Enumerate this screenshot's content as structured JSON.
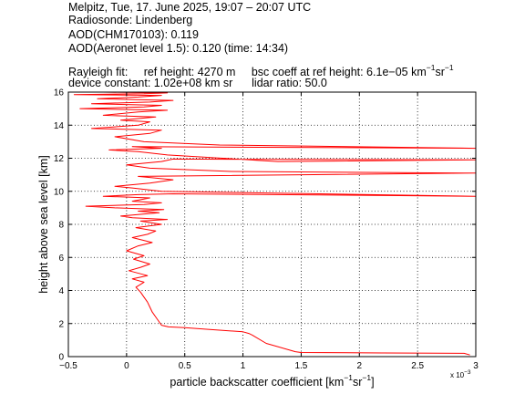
{
  "header": {
    "line1": "Melpitz, Tue, 17. June 2025, 19:07 – 20:07 UTC",
    "line2": "Radiosonde: Lindenberg",
    "line3": "AOD(CHM170103): 0.119",
    "line4": "AOD(Aeronet level 1.5): 0.120   (time: 14:34)",
    "rayleigh_label": "Rayleigh fit:",
    "ref_height": "ref height: 4270 m",
    "bsc_coeff_pre": "bsc coeff at ref height: 6.1e−05 km",
    "bsc_coeff_exp1": "−1",
    "bsc_coeff_mid": "sr",
    "bsc_coeff_exp2": "−1",
    "device_constant": "device constant: 1.02e+08 km sr",
    "lidar_ratio": "lidar ratio: 50.0"
  },
  "chart_data": {
    "type": "line",
    "xlabel_pre": "particle backscatter coefficient [km",
    "xlabel_exp1": "−1",
    "xlabel_mid": "sr",
    "xlabel_exp2": "−1",
    "xlabel_post": "]",
    "x_multiplier": "x 10",
    "x_multiplier_exp": "−3",
    "ylabel": "height above sea level [km]",
    "xlim": [
      -0.5,
      3
    ],
    "ylim": [
      0,
      16
    ],
    "xticks": [
      -0.5,
      0,
      0.5,
      1,
      1.5,
      2,
      2.5,
      3
    ],
    "xtick_labels": [
      "−0.5",
      "0",
      "0.5",
      "1",
      "1.5",
      "2",
      "2.5",
      "3"
    ],
    "yticks": [
      0,
      2,
      4,
      6,
      8,
      10,
      12,
      14,
      16
    ],
    "ytick_labels": [
      "0",
      "2",
      "4",
      "6",
      "8",
      "10",
      "12",
      "14",
      "16"
    ],
    "grid": true,
    "line_color": "#ff0000",
    "series": [
      {
        "x": [
          2.95,
          2.9,
          2.2,
          1.5,
          1.45,
          1.2,
          1.08,
          1.05,
          1.0,
          0.7,
          0.5,
          0.36,
          0.3,
          0.28,
          0.25,
          0.22,
          0.2,
          0.18,
          0.15,
          0.12,
          0.08,
          0.15,
          0.05,
          0.18,
          0.02,
          0.12,
          0.2,
          0.06,
          0.15,
          0.0,
          0.1,
          0.22,
          0.05,
          0.18,
          0.25,
          0.08,
          0.3,
          0.12,
          0.35,
          0.05,
          -0.05,
          0.28,
          0.1,
          0.32,
          -0.1,
          -0.35,
          0.15,
          0.3,
          0.05,
          0.2,
          -0.2,
          0.1,
          0.4,
          3.0,
          0.3,
          0.05,
          -0.1,
          0.2,
          0.4,
          0.1,
          3.0,
          0.9,
          0.2,
          0.0,
          0.3,
          0.4,
          3.0,
          1.3,
          0.35,
          0.1,
          -0.15,
          0.3,
          0.05,
          3.0,
          0.8,
          0.15,
          -0.1,
          0.2,
          0.3,
          -0.3,
          0.1,
          0.2,
          -0.05,
          0.25,
          -0.2,
          0.1,
          0.35,
          -0.4,
          0.15,
          0.3,
          -0.3,
          0.2,
          0.4,
          -0.25,
          0.1,
          0.3,
          -0.45,
          0.15,
          0.35,
          -0.2
        ],
        "y": [
          0.1,
          0.2,
          0.22,
          0.25,
          0.3,
          0.8,
          1.3,
          1.4,
          1.5,
          1.65,
          1.75,
          1.8,
          1.9,
          2.1,
          2.4,
          2.7,
          3.0,
          3.3,
          3.6,
          3.9,
          4.2,
          4.5,
          4.7,
          4.9,
          5.2,
          5.4,
          5.6,
          5.9,
          6.1,
          6.4,
          6.7,
          6.9,
          7.2,
          7.4,
          7.6,
          7.8,
          8.0,
          8.2,
          8.3,
          8.4,
          8.5,
          8.7,
          8.8,
          8.9,
          9.0,
          9.1,
          9.2,
          9.3,
          9.4,
          9.6,
          9.7,
          9.8,
          9.85,
          9.7,
          10.0,
          10.2,
          10.3,
          10.5,
          10.7,
          10.9,
          11.1,
          11.2,
          11.4,
          11.6,
          11.8,
          11.95,
          11.9,
          11.8,
          12.2,
          12.4,
          12.5,
          12.6,
          12.7,
          12.6,
          12.8,
          13.0,
          13.3,
          13.5,
          13.7,
          13.8,
          14.0,
          14.2,
          14.3,
          14.5,
          14.6,
          14.8,
          14.9,
          15.0,
          15.1,
          15.2,
          15.3,
          15.4,
          15.5,
          15.6,
          15.7,
          15.8,
          15.85,
          15.9,
          15.95,
          16.0
        ]
      }
    ]
  }
}
